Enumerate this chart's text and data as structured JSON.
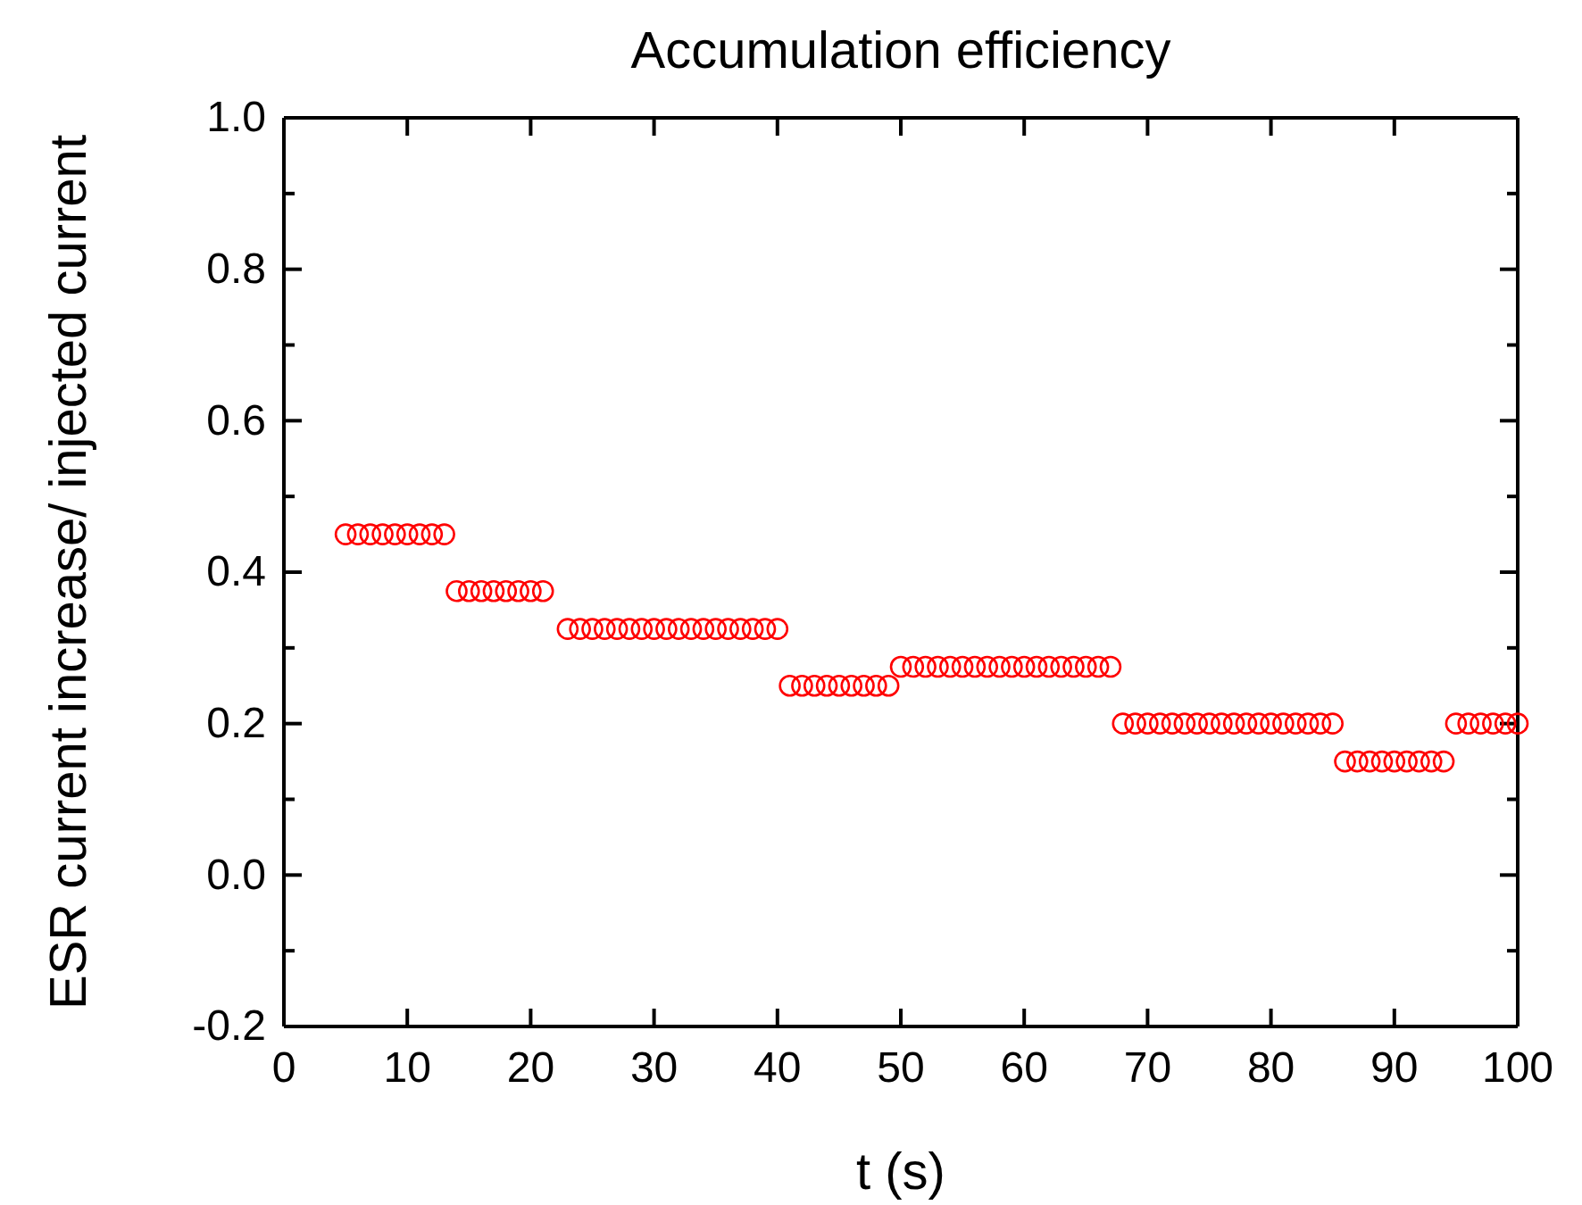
{
  "chart_data": {
    "type": "scatter",
    "title": "Accumulation efficiency",
    "xlabel": "t (s)",
    "ylabel": "ESR current increase/ injected current",
    "marker": "circle",
    "x": [
      5,
      6,
      7,
      8,
      9,
      10,
      11,
      12,
      13,
      14,
      15,
      16,
      17,
      18,
      19,
      20,
      21,
      23,
      24,
      25,
      26,
      27,
      28,
      29,
      30,
      31,
      32,
      33,
      34,
      35,
      36,
      37,
      38,
      39,
      40,
      41,
      42,
      43,
      44,
      45,
      46,
      47,
      48,
      49,
      50,
      51,
      52,
      53,
      54,
      55,
      56,
      57,
      58,
      59,
      60,
      61,
      62,
      63,
      64,
      65,
      66,
      67,
      68,
      69,
      70,
      71,
      72,
      73,
      74,
      75,
      76,
      77,
      78,
      79,
      80,
      81,
      82,
      83,
      84,
      85,
      86,
      87,
      88,
      89,
      90,
      91,
      92,
      93,
      94,
      95,
      96,
      97,
      98,
      99,
      100
    ],
    "series": [
      {
        "color": "#ff0000",
        "values": [
          0.45,
          0.45,
          0.45,
          0.45,
          0.45,
          0.45,
          0.45,
          0.45,
          0.45,
          0.375,
          0.375,
          0.375,
          0.375,
          0.375,
          0.375,
          0.375,
          0.375,
          0.325,
          0.325,
          0.325,
          0.325,
          0.325,
          0.325,
          0.325,
          0.325,
          0.325,
          0.325,
          0.325,
          0.325,
          0.325,
          0.325,
          0.325,
          0.325,
          0.325,
          0.325,
          0.25,
          0.25,
          0.25,
          0.25,
          0.25,
          0.25,
          0.25,
          0.25,
          0.25,
          0.275,
          0.275,
          0.275,
          0.275,
          0.275,
          0.275,
          0.275,
          0.275,
          0.275,
          0.275,
          0.275,
          0.275,
          0.275,
          0.275,
          0.275,
          0.275,
          0.275,
          0.275,
          0.2,
          0.2,
          0.2,
          0.2,
          0.2,
          0.2,
          0.2,
          0.2,
          0.2,
          0.2,
          0.2,
          0.2,
          0.2,
          0.2,
          0.2,
          0.2,
          0.2,
          0.2,
          0.15,
          0.15,
          0.15,
          0.15,
          0.15,
          0.15,
          0.15,
          0.15,
          0.15,
          0.2,
          0.2,
          0.2,
          0.2,
          0.2,
          0.2
        ]
      }
    ],
    "xlim": [
      0,
      100
    ],
    "xticks": [
      0,
      10,
      20,
      30,
      40,
      50,
      60,
      70,
      80,
      90,
      100
    ],
    "ylim": [
      -0.2,
      1.0
    ],
    "yticks": [
      {
        "value": -0.2,
        "label": "-0.2"
      },
      {
        "value": -0.1,
        "label": null
      },
      {
        "value": 0,
        "label": "0.0"
      },
      {
        "value": 0.1,
        "label": null
      },
      {
        "value": 0.2,
        "label": "0.2"
      },
      {
        "value": 0.3,
        "label": null
      },
      {
        "value": 0.4,
        "label": "0.4"
      },
      {
        "value": 0.5,
        "label": null
      },
      {
        "value": 0.6,
        "label": "0.6"
      },
      {
        "value": 0.7,
        "label": null
      },
      {
        "value": 0.8,
        "label": "0.8"
      },
      {
        "value": 0.9,
        "label": null
      },
      {
        "value": 1.0,
        "label": "1.0"
      }
    ]
  }
}
